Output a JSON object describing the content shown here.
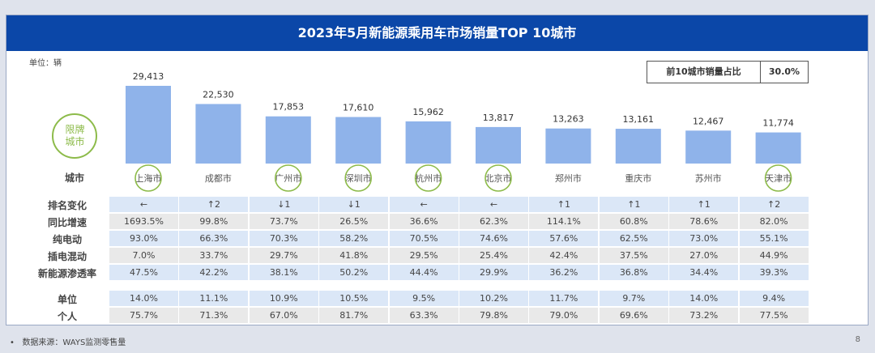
{
  "title": "2023年5月新能源乘用车市场销量TOP 10城市",
  "unit_label": "单位：辆",
  "share": {
    "label": "前10城市销量占比",
    "value": "30.0%"
  },
  "legend_label": "限牌城市",
  "city_header": "城市",
  "restricted_color": "#8dbb4a",
  "bar_color": "#8fb3ea",
  "chart_data": {
    "type": "bar",
    "categories": [
      "上海市",
      "成都市",
      "广州市",
      "深圳市",
      "杭州市",
      "北京市",
      "郑州市",
      "重庆市",
      "苏州市",
      "天津市"
    ],
    "values": [
      29413,
      22530,
      17853,
      17610,
      15962,
      13817,
      13263,
      13161,
      12467,
      11774
    ],
    "value_labels": [
      "29,413",
      "22,530",
      "17,853",
      "17,610",
      "15,962",
      "13,817",
      "13,263",
      "13,161",
      "12,467",
      "11,774"
    ],
    "restricted": [
      true,
      false,
      true,
      true,
      true,
      true,
      false,
      false,
      false,
      true
    ]
  },
  "table": {
    "rows": [
      {
        "label": "排名变化",
        "values": [
          "←",
          "↑2",
          "↓1",
          "↓1",
          "←",
          "←",
          "↑1",
          "↑1",
          "↑1",
          "↑2"
        ]
      },
      {
        "label": "同比增速",
        "values": [
          "1693.5%",
          "99.8%",
          "73.7%",
          "26.5%",
          "36.6%",
          "62.3%",
          "114.1%",
          "60.8%",
          "78.6%",
          "82.0%"
        ]
      },
      {
        "label": "纯电动",
        "values": [
          "93.0%",
          "66.3%",
          "70.3%",
          "58.2%",
          "70.5%",
          "74.6%",
          "57.6%",
          "62.5%",
          "73.0%",
          "55.1%"
        ]
      },
      {
        "label": "插电混动",
        "values": [
          "7.0%",
          "33.7%",
          "29.7%",
          "41.8%",
          "29.5%",
          "25.4%",
          "42.4%",
          "37.5%",
          "27.0%",
          "44.9%"
        ]
      },
      {
        "label": "新能源渗透率",
        "values": [
          "47.5%",
          "42.2%",
          "38.1%",
          "50.2%",
          "44.4%",
          "29.9%",
          "36.2%",
          "36.8%",
          "34.4%",
          "39.3%"
        ]
      }
    ],
    "rows2": [
      {
        "label": "单位",
        "values": [
          "14.0%",
          "11.1%",
          "10.9%",
          "10.5%",
          "9.5%",
          "10.2%",
          "11.7%",
          "9.7%",
          "14.0%",
          "9.4%"
        ]
      },
      {
        "label": "个人",
        "values": [
          "75.7%",
          "71.3%",
          "67.0%",
          "81.7%",
          "63.3%",
          "79.8%",
          "79.0%",
          "69.6%",
          "73.2%",
          "77.5%"
        ]
      }
    ]
  },
  "source": "数据来源：WAYS监测零售量",
  "page_number": "8"
}
